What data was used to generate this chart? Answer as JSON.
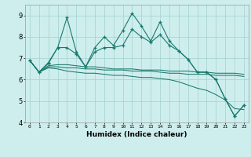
{
  "x": [
    0,
    1,
    2,
    3,
    4,
    5,
    6,
    7,
    8,
    9,
    10,
    11,
    12,
    13,
    14,
    15,
    16,
    17,
    18,
    19,
    20,
    21,
    22,
    23
  ],
  "line1": [
    6.9,
    6.35,
    6.8,
    7.5,
    8.9,
    7.3,
    6.6,
    7.5,
    8.0,
    7.6,
    8.3,
    9.1,
    8.5,
    7.8,
    8.7,
    7.8,
    7.35,
    6.95,
    6.35,
    6.35,
    6.0,
    5.1,
    4.3,
    4.8
  ],
  "line2": [
    6.9,
    6.35,
    6.75,
    7.5,
    7.5,
    7.2,
    6.6,
    7.3,
    7.5,
    7.5,
    7.6,
    8.35,
    8.0,
    7.75,
    8.1,
    7.6,
    7.35,
    6.95,
    6.35,
    6.35,
    6.0,
    5.1,
    4.3,
    4.8
  ],
  "line3": [
    6.9,
    6.35,
    6.65,
    6.7,
    6.7,
    6.65,
    6.6,
    6.6,
    6.55,
    6.5,
    6.5,
    6.5,
    6.45,
    6.45,
    6.45,
    6.4,
    6.4,
    6.4,
    6.35,
    6.35,
    6.3,
    6.3,
    6.3,
    6.25
  ],
  "line4": [
    6.9,
    6.35,
    6.6,
    6.6,
    6.55,
    6.55,
    6.5,
    6.5,
    6.45,
    6.45,
    6.45,
    6.4,
    6.4,
    6.4,
    6.35,
    6.3,
    6.3,
    6.25,
    6.25,
    6.25,
    6.2,
    6.2,
    6.2,
    6.15
  ],
  "line5": [
    6.9,
    6.35,
    6.55,
    6.5,
    6.4,
    6.35,
    6.3,
    6.3,
    6.25,
    6.2,
    6.2,
    6.15,
    6.1,
    6.1,
    6.05,
    6.0,
    5.9,
    5.75,
    5.6,
    5.5,
    5.3,
    5.05,
    4.65,
    4.6
  ],
  "color": "#1a7a6e",
  "bg_color": "#ceeeed",
  "grid_color": "#aad4d4",
  "xlabel": "Humidex (Indice chaleur)",
  "ylim": [
    4,
    9.5
  ],
  "xlim": [
    -0.5,
    23.5
  ],
  "yticks": [
    4,
    5,
    6,
    7,
    8,
    9
  ],
  "xticks": [
    0,
    1,
    2,
    3,
    4,
    5,
    6,
    7,
    8,
    9,
    10,
    11,
    12,
    13,
    14,
    15,
    16,
    17,
    18,
    19,
    20,
    21,
    22,
    23
  ]
}
